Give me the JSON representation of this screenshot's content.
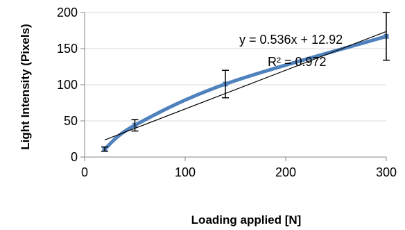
{
  "chart_data": {
    "type": "scatter",
    "title": "",
    "xlabel": "Loading applied [N]",
    "ylabel": "Light Intensity (Pixels)",
    "xlim": [
      0,
      300
    ],
    "ylim": [
      0,
      200
    ],
    "x_ticks": [
      0,
      100,
      200,
      300
    ],
    "y_ticks": [
      0,
      50,
      100,
      150,
      200
    ],
    "grid": "horizontal",
    "points": [
      {
        "x": 20,
        "y": 11,
        "err": 3
      },
      {
        "x": 50,
        "y": 44,
        "err": 8
      },
      {
        "x": 140,
        "y": 101,
        "err": 19
      },
      {
        "x": 300,
        "y": 167,
        "err": 33
      }
    ],
    "smooth_curve": {
      "color": "#4f81bd"
    },
    "trendline": {
      "type": "linear",
      "slope": 0.536,
      "intercept": 12.92,
      "x_range": [
        20,
        300
      ],
      "equation": "y = 0.536x + 12.92",
      "r_squared": "R² = 0.972",
      "color": "#000000"
    }
  }
}
